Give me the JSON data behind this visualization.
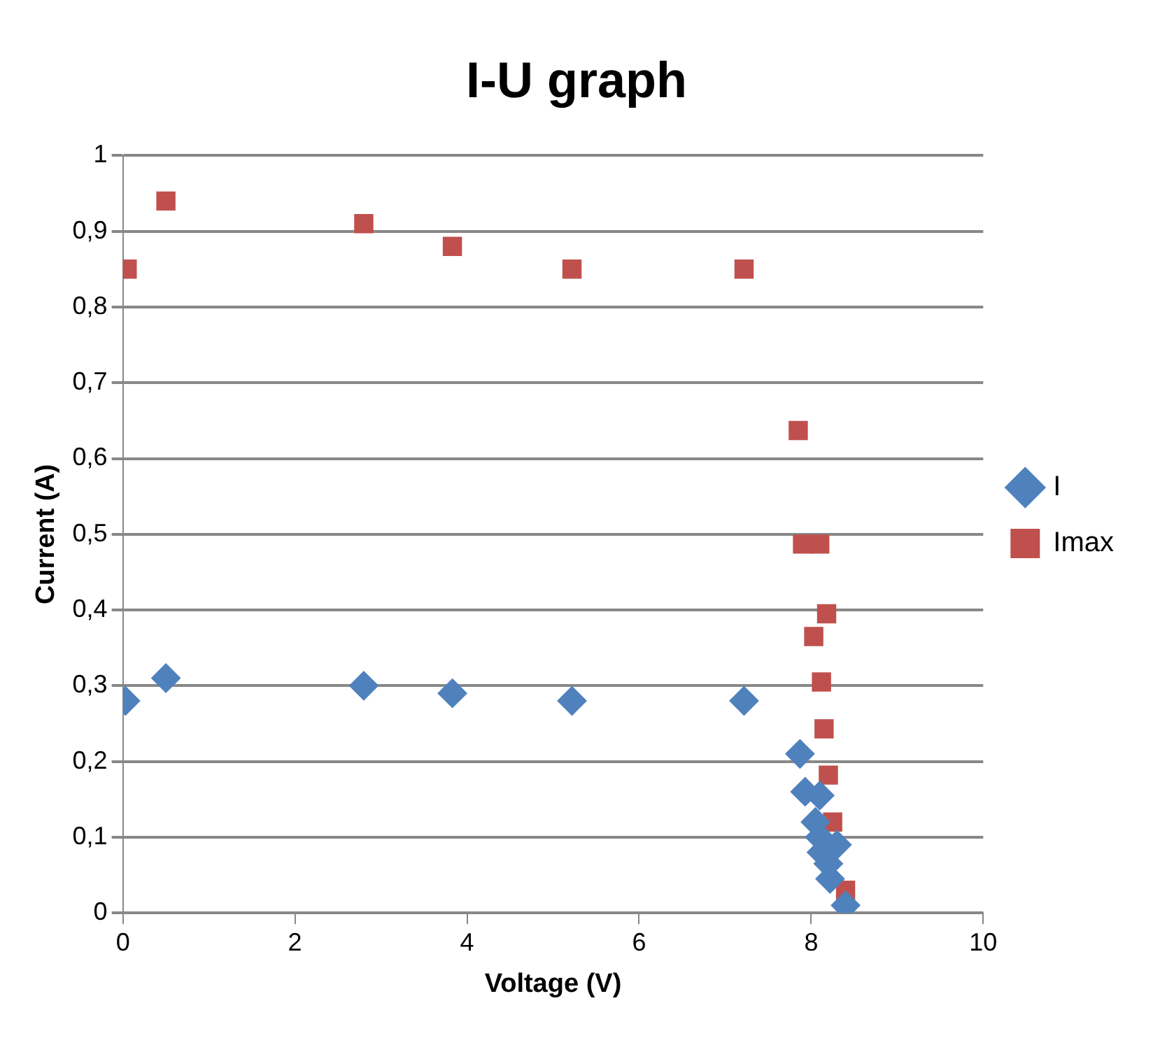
{
  "chart_data": {
    "type": "scatter",
    "title": "I-U graph",
    "xlabel": "Voltage (V)",
    "ylabel": "Current (A)",
    "xlim": [
      0,
      10
    ],
    "xticks": [
      0,
      2,
      4,
      6,
      8,
      10
    ],
    "ylim": [
      0,
      1
    ],
    "yticks": [
      {
        "value": 0,
        "label": "0"
      },
      {
        "value": 0.1,
        "label": "0,1"
      },
      {
        "value": 0.2,
        "label": "0,2"
      },
      {
        "value": 0.3,
        "label": "0,3"
      },
      {
        "value": 0.4,
        "label": "0,4"
      },
      {
        "value": 0.5,
        "label": "0,5"
      },
      {
        "value": 0.6,
        "label": "0,6"
      },
      {
        "value": 0.7,
        "label": "0,7"
      },
      {
        "value": 0.8,
        "label": "0,8"
      },
      {
        "value": 0.9,
        "label": "0,9"
      },
      {
        "value": 1,
        "label": "1"
      }
    ],
    "grid": "y",
    "legend": "right",
    "series": [
      {
        "name": "I",
        "color": "#4f81bd",
        "marker": "diamond",
        "x": [
          0.03,
          0.5,
          2.8,
          3.83,
          5.22,
          7.22,
          7.87,
          7.93,
          8.05,
          8.1,
          8.1,
          8.12,
          8.2,
          8.3,
          8.22,
          8.4
        ],
        "values": [
          0.28,
          0.31,
          0.3,
          0.29,
          0.28,
          0.28,
          0.21,
          0.16,
          0.12,
          0.155,
          0.1,
          0.08,
          0.065,
          0.09,
          0.045,
          0.01
        ]
      },
      {
        "name": "Imax",
        "color": "#c0504d",
        "marker": "square",
        "x": [
          0.05,
          0.5,
          2.8,
          3.83,
          5.22,
          7.22,
          7.85,
          7.9,
          8.1,
          8.18,
          8.03,
          8.12,
          8.15,
          8.2,
          8.25,
          8.4
        ],
        "values": [
          0.85,
          0.94,
          0.91,
          0.88,
          0.85,
          0.85,
          0.637,
          0.487,
          0.487,
          0.395,
          0.365,
          0.305,
          0.243,
          0.182,
          0.12,
          0.03
        ]
      }
    ]
  }
}
